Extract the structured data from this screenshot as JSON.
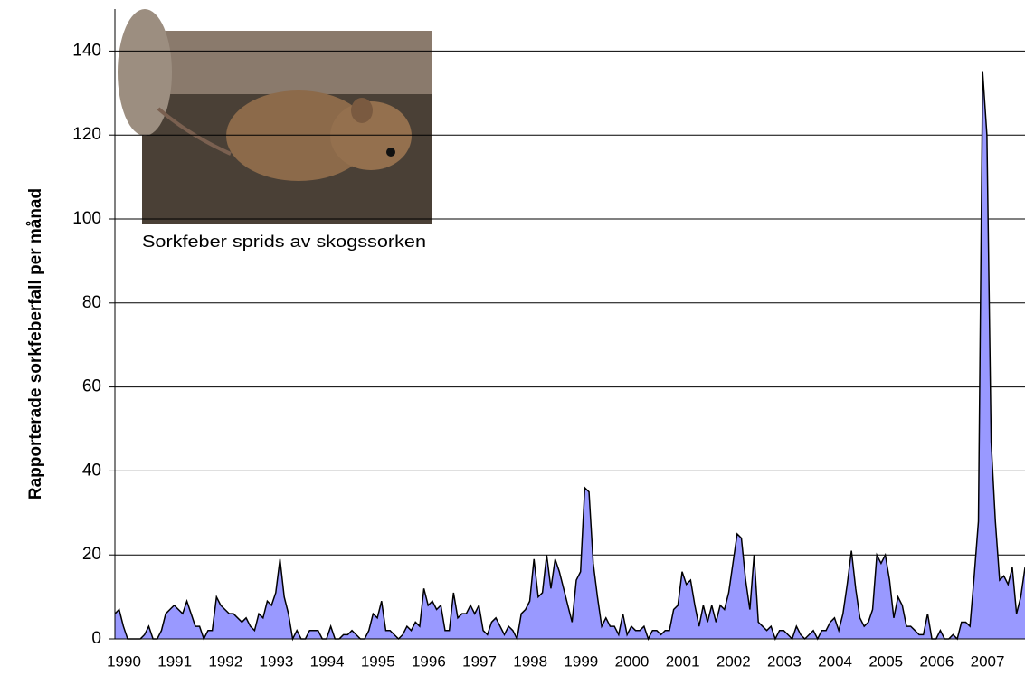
{
  "chart_data": {
    "type": "area",
    "y_label": "Rapporterade sorkfeberfall per månad",
    "image_caption": "Sorkfeber sprids av skogssorken",
    "color": "#9999ff",
    "grid": true,
    "ylim": [
      0,
      150
    ],
    "yticks": [
      0,
      20,
      40,
      60,
      80,
      100,
      120,
      140
    ],
    "categories": [
      "1990",
      null,
      null,
      null,
      null,
      null,
      null,
      null,
      null,
      null,
      null,
      null,
      "1991",
      null,
      null,
      null,
      null,
      null,
      null,
      null,
      null,
      null,
      null,
      null,
      "1992",
      null,
      null,
      null,
      null,
      null,
      null,
      null,
      null,
      null,
      null,
      null,
      "1993",
      null,
      null,
      null,
      null,
      null,
      null,
      null,
      null,
      null,
      null,
      null,
      "1994",
      null,
      null,
      null,
      null,
      null,
      null,
      null,
      null,
      null,
      null,
      null,
      "1995",
      null,
      null,
      null,
      null,
      null,
      null,
      null,
      null,
      null,
      null,
      null,
      "1996",
      null,
      null,
      null,
      null,
      null,
      null,
      null,
      null,
      null,
      null,
      null,
      "1997",
      null,
      null,
      null,
      null,
      null,
      null,
      null,
      null,
      null,
      null,
      null,
      "1998",
      null,
      null,
      null,
      null,
      null,
      null,
      null,
      null,
      null,
      null,
      null,
      "1999",
      null,
      null,
      null,
      null,
      null,
      null,
      null,
      null,
      null,
      null,
      null,
      "2000",
      null,
      null,
      null,
      null,
      null,
      null,
      null,
      null,
      null,
      null,
      null,
      "2001",
      null,
      null,
      null,
      null,
      null,
      null,
      null,
      null,
      null,
      null,
      null,
      "2002",
      null,
      null,
      null,
      null,
      null,
      null,
      null,
      null,
      null,
      null,
      null,
      "2003",
      null,
      null,
      null,
      null,
      null,
      null,
      null,
      null,
      null,
      null,
      null,
      "2004",
      null,
      null,
      null,
      null,
      null,
      null,
      null,
      null,
      null,
      null,
      null,
      "2005",
      null,
      null,
      null,
      null,
      null,
      null,
      null,
      null,
      null,
      null,
      null,
      "2006",
      null,
      null,
      null,
      null,
      null,
      null,
      null,
      null,
      null,
      null,
      null,
      "2007",
      null,
      null,
      null,
      null,
      null,
      null,
      null,
      null,
      null,
      null,
      null
    ],
    "values": [
      6,
      7,
      3,
      0,
      0,
      0,
      0,
      1,
      3,
      0,
      0,
      2,
      6,
      7,
      8,
      7,
      6,
      9,
      6,
      3,
      3,
      0,
      2,
      2,
      10,
      8,
      7,
      6,
      6,
      5,
      4,
      5,
      3,
      2,
      6,
      5,
      9,
      8,
      11,
      19,
      10,
      6,
      0,
      2,
      0,
      0,
      2,
      2,
      2,
      0,
      0,
      3,
      0,
      0,
      1,
      1,
      2,
      1,
      0,
      0,
      2,
      6,
      5,
      9,
      2,
      2,
      1,
      0,
      1,
      3,
      2,
      4,
      3,
      12,
      8,
      9,
      7,
      8,
      2,
      2,
      11,
      5,
      6,
      6,
      8,
      6,
      8,
      2,
      1,
      4,
      5,
      3,
      1,
      3,
      2,
      0,
      6,
      7,
      9,
      19,
      10,
      11,
      20,
      12,
      19,
      16,
      12,
      8,
      4,
      14,
      16,
      36,
      35,
      18,
      10,
      3,
      5,
      3,
      3,
      1,
      6,
      1,
      3,
      2,
      2,
      3,
      0,
      2,
      2,
      1,
      2,
      2,
      7,
      8,
      16,
      13,
      14,
      8,
      3,
      8,
      4,
      8,
      4,
      8,
      7,
      11,
      18,
      25,
      24,
      14,
      7,
      20,
      4,
      3,
      2,
      3,
      0,
      2,
      2,
      1,
      0,
      3,
      1,
      0,
      1,
      2,
      0,
      2,
      2,
      4,
      5,
      2,
      6,
      13,
      21,
      12,
      5,
      3,
      4,
      7,
      20,
      18,
      20,
      14,
      5,
      10,
      8,
      3,
      3,
      2,
      1,
      1,
      6,
      0,
      0,
      2,
      0,
      0,
      1,
      0,
      4,
      4,
      3,
      15,
      28,
      135,
      120,
      47,
      28,
      14,
      15,
      13,
      17,
      6,
      10,
      17
    ]
  }
}
